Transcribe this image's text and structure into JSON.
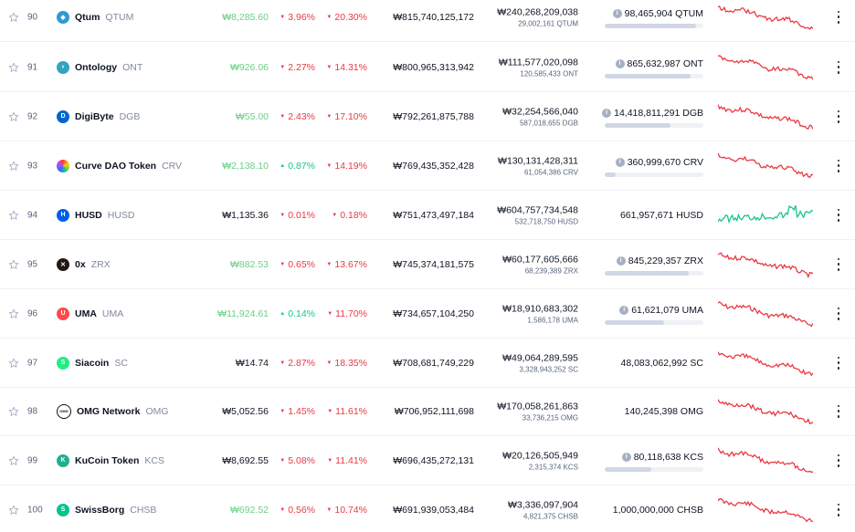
{
  "colors": {
    "green_price": "#6ccf87",
    "red": "#ea3943",
    "green": "#16c784",
    "muted": "#808a9d"
  },
  "rows": [
    {
      "rank": "90",
      "name": "Qtum",
      "symbol": "QTUM",
      "logo_color": "#2e9ad0",
      "logo_glyph": "◈",
      "price": "₩8,285.60",
      "price_trend": "up",
      "h24": "3.96%",
      "h24_dir": "down",
      "d7": "20.30%",
      "d7_dir": "down",
      "market_cap": "₩815,740,125,172",
      "volume": "₩240,268,209,038",
      "volume_sub": "29,002,161 QTUM",
      "supply": "98,465,904 QTUM",
      "supply_info": true,
      "supply_fill": 0.93,
      "spark_color": "#ea3943",
      "spark_seed": 1
    },
    {
      "rank": "91",
      "name": "Ontology",
      "symbol": "ONT",
      "logo_color": "#32a4be",
      "logo_glyph": "◗",
      "price": "₩926.06",
      "price_trend": "up",
      "h24": "2.27%",
      "h24_dir": "down",
      "d7": "14.31%",
      "d7_dir": "down",
      "market_cap": "₩800,965,313,942",
      "volume": "₩111,577,020,098",
      "volume_sub": "120,585,433 ONT",
      "supply": "865,632,987 ONT",
      "supply_info": true,
      "supply_fill": 0.87,
      "spark_color": "#ea3943",
      "spark_seed": 2
    },
    {
      "rank": "92",
      "name": "DigiByte",
      "symbol": "DGB",
      "logo_color": "#0066cc",
      "logo_glyph": "D",
      "price": "₩55.00",
      "price_trend": "up",
      "h24": "2.43%",
      "h24_dir": "down",
      "d7": "17.10%",
      "d7_dir": "down",
      "market_cap": "₩792,261,875,788",
      "volume": "₩32,254,566,040",
      "volume_sub": "587,018,655 DGB",
      "supply": "14,418,811,291 DGB",
      "supply_info": true,
      "supply_fill": 0.67,
      "spark_color": "#ea3943",
      "spark_seed": 3
    },
    {
      "rank": "93",
      "name": "Curve DAO Token",
      "symbol": "CRV",
      "logo_color": "#ff4f4f",
      "logo_glyph": "",
      "price": "₩2,138.10",
      "price_trend": "up",
      "h24": "0.87%",
      "h24_dir": "up",
      "d7": "14.19%",
      "d7_dir": "down",
      "market_cap": "₩769,435,352,428",
      "volume": "₩130,131,428,311",
      "volume_sub": "61,054,386 CRV",
      "supply": "360,999,670 CRV",
      "supply_info": true,
      "supply_fill": 0.11,
      "spark_color": "#ea3943",
      "spark_seed": 4
    },
    {
      "rank": "94",
      "name": "HUSD",
      "symbol": "HUSD",
      "logo_color": "#005fe8",
      "logo_glyph": "H",
      "price": "₩1,135.36",
      "price_trend": "neutral",
      "h24": "0.01%",
      "h24_dir": "down",
      "d7": "0.18%",
      "d7_dir": "down",
      "market_cap": "₩751,473,497,184",
      "volume": "₩604,757,734,548",
      "volume_sub": "532,718,750 HUSD",
      "supply": "661,957,671 HUSD",
      "supply_info": false,
      "supply_fill": 0,
      "spark_color": "#16c784",
      "spark_seed": 5
    },
    {
      "rank": "95",
      "name": "0x",
      "symbol": "ZRX",
      "logo_color": "#231815",
      "logo_glyph": "✕",
      "price": "₩882.53",
      "price_trend": "up",
      "h24": "0.65%",
      "h24_dir": "down",
      "d7": "13.67%",
      "d7_dir": "down",
      "market_cap": "₩745,374,181,575",
      "volume": "₩60,177,605,666",
      "volume_sub": "68,239,389 ZRX",
      "supply": "845,229,357 ZRX",
      "supply_info": true,
      "supply_fill": 0.85,
      "spark_color": "#ea3943",
      "spark_seed": 6
    },
    {
      "rank": "96",
      "name": "UMA",
      "symbol": "UMA",
      "logo_color": "#ff4a4a",
      "logo_glyph": "U",
      "price": "₩11,924.61",
      "price_trend": "up",
      "h24": "0.14%",
      "h24_dir": "up",
      "d7": "11.70%",
      "d7_dir": "down",
      "market_cap": "₩734,657,104,250",
      "volume": "₩18,910,683,302",
      "volume_sub": "1,586,178 UMA",
      "supply": "61,621,079 UMA",
      "supply_info": true,
      "supply_fill": 0.6,
      "spark_color": "#ea3943",
      "spark_seed": 7
    },
    {
      "rank": "97",
      "name": "Siacoin",
      "symbol": "SC",
      "logo_color": "#20ee82",
      "logo_glyph": "S",
      "price": "₩14.74",
      "price_trend": "neutral",
      "h24": "2.87%",
      "h24_dir": "down",
      "d7": "18.35%",
      "d7_dir": "down",
      "market_cap": "₩708,681,749,229",
      "volume": "₩49,064,289,595",
      "volume_sub": "3,328,943,252 SC",
      "supply": "48,083,062,992 SC",
      "supply_info": false,
      "supply_fill": 0,
      "spark_color": "#ea3943",
      "spark_seed": 8
    },
    {
      "rank": "98",
      "name": "OMG Network",
      "symbol": "OMG",
      "logo_color": "#101010",
      "logo_glyph": "OMG",
      "price": "₩5,052.56",
      "price_trend": "neutral",
      "h24": "1.45%",
      "h24_dir": "down",
      "d7": "11.61%",
      "d7_dir": "down",
      "market_cap": "₩706,952,111,698",
      "volume": "₩170,058,261,863",
      "volume_sub": "33,736,215 OMG",
      "supply": "140,245,398 OMG",
      "supply_info": false,
      "supply_fill": 0,
      "spark_color": "#ea3943",
      "spark_seed": 9
    },
    {
      "rank": "99",
      "name": "KuCoin Token",
      "symbol": "KCS",
      "logo_color": "#24ae8f",
      "logo_glyph": "K",
      "price": "₩8,692.55",
      "price_trend": "neutral",
      "h24": "5.08%",
      "h24_dir": "down",
      "d7": "11.41%",
      "d7_dir": "down",
      "market_cap": "₩696,435,272,131",
      "volume": "₩20,126,505,949",
      "volume_sub": "2,315,374 KCS",
      "supply": "80,118,638 KCS",
      "supply_info": true,
      "supply_fill": 0.47,
      "spark_color": "#ea3943",
      "spark_seed": 10
    },
    {
      "rank": "100",
      "name": "SwissBorg",
      "symbol": "CHSB",
      "logo_color": "#01c38d",
      "logo_glyph": "S",
      "price": "₩692.52",
      "price_trend": "up",
      "h24": "0.56%",
      "h24_dir": "down",
      "d7": "10.74%",
      "d7_dir": "down",
      "market_cap": "₩691,939,053,484",
      "volume": "₩3,336,097,904",
      "volume_sub": "4,821,375 CHSB",
      "supply": "1,000,000,000 CHSB",
      "supply_info": false,
      "supply_fill": 0,
      "spark_color": "#ea3943",
      "spark_seed": 11
    }
  ]
}
